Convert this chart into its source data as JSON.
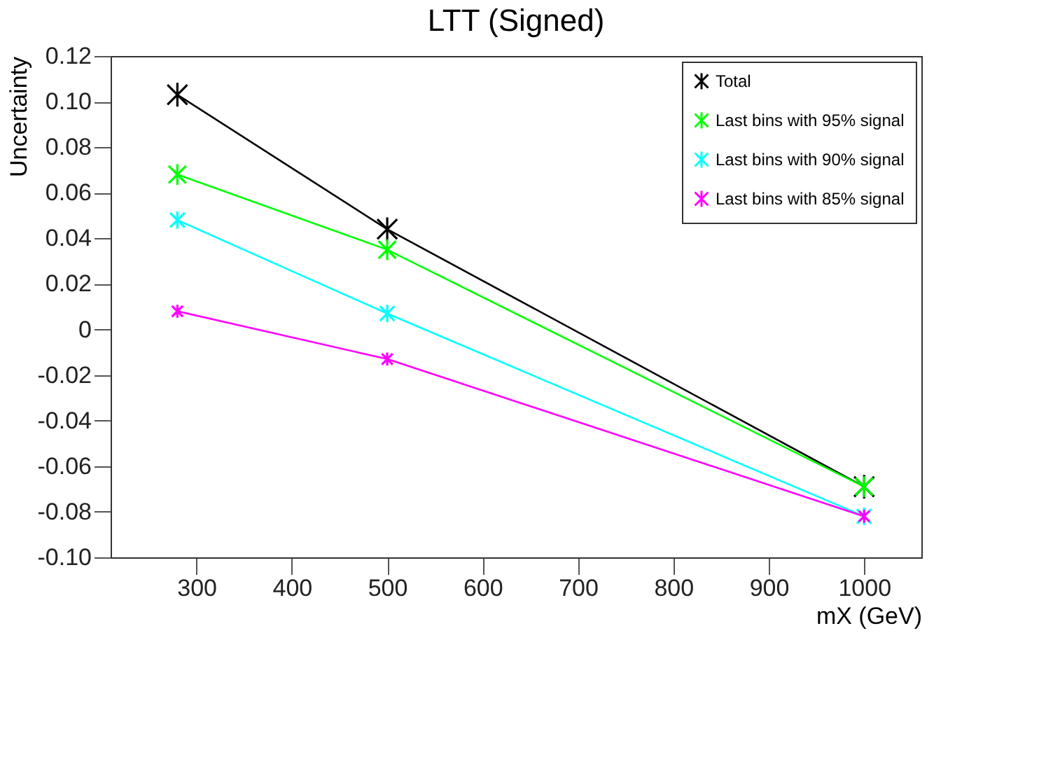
{
  "chart_data": {
    "type": "line",
    "title": "LTT (Signed)",
    "xlabel": "mX (GeV)",
    "ylabel": "Uncertainty",
    "x": [
      280,
      500,
      1000
    ],
    "series": [
      {
        "name": "Total",
        "color": "#000000",
        "values": [
          0.103,
          0.044,
          -0.069
        ]
      },
      {
        "name": "Last bins with 95% signal",
        "color": "#00ff00",
        "values": [
          0.068,
          0.035,
          -0.069
        ]
      },
      {
        "name": "Last bins with 90% signal",
        "color": "#00ffff",
        "values": [
          0.048,
          0.007,
          -0.082
        ]
      },
      {
        "name": "Last bins with 85% signal",
        "color": "#ff00ff",
        "values": [
          0.008,
          -0.013,
          -0.082
        ]
      }
    ],
    "xlim": [
      210,
      1060
    ],
    "xticks": [
      300,
      400,
      500,
      600,
      700,
      800,
      900,
      1000
    ],
    "ylim": [
      -0.1,
      0.12
    ],
    "yticks": [
      {
        "value": -0.1,
        "label": "-0.10"
      },
      -0.08,
      -0.06,
      -0.04,
      -0.02,
      0,
      0.02,
      0.04,
      0.06,
      0.08,
      {
        "value": 0.1,
        "label": "0.10"
      },
      0.12
    ],
    "grid": false,
    "legend": "top right",
    "marker": "cross",
    "line_style": "solid"
  }
}
